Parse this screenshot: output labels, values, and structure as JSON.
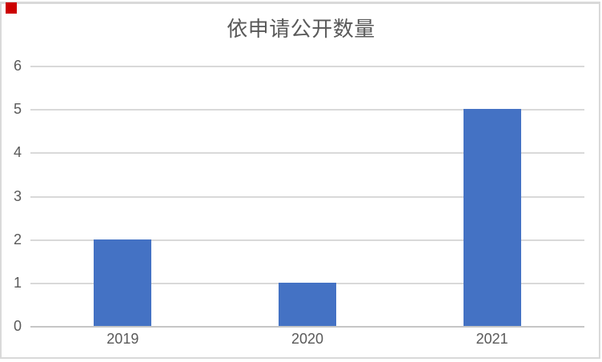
{
  "chart_data": {
    "type": "bar",
    "title": "依申请公开数量",
    "categories": [
      "2019",
      "2020",
      "2021"
    ],
    "values": [
      2,
      1,
      5
    ],
    "xlabel": "",
    "ylabel": "",
    "ylim": [
      0,
      6
    ],
    "yticks": [
      0,
      1,
      2,
      3,
      4,
      5,
      6
    ],
    "grid": true,
    "legend": "none",
    "bar_color": "#4472c4",
    "text_color": "#595959",
    "gridline_color": "#d9d9d9",
    "border_color": "#d9d9d9",
    "background_color": "#ffffff"
  },
  "marker": {
    "color": "#cc0000"
  }
}
